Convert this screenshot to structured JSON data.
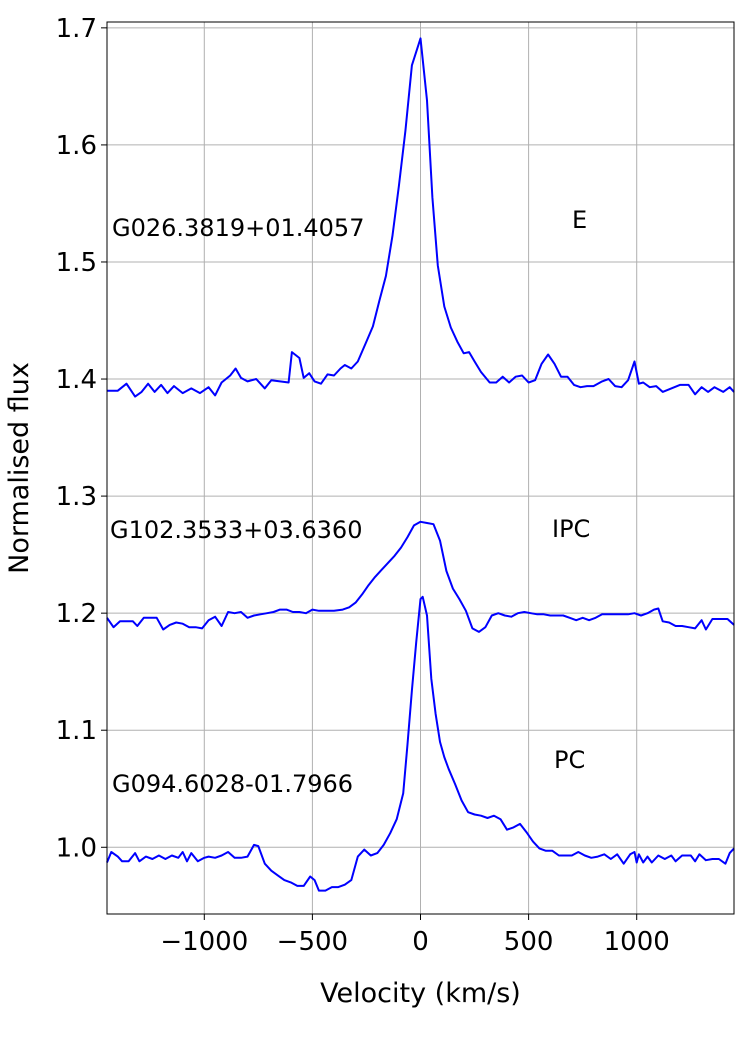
{
  "chart_data": {
    "type": "line",
    "xlabel": "Velocity (km/s)",
    "ylabel": "Normalised flux",
    "xlim": [
      -1450,
      1450
    ],
    "ylim": [
      0.943,
      1.705
    ],
    "xticks": [
      -1000,
      -500,
      0,
      500,
      1000
    ],
    "xtick_labels": [
      "−1000",
      "−500",
      "0",
      "500",
      "1000"
    ],
    "yticks": [
      1.0,
      1.1,
      1.2,
      1.3,
      1.4,
      1.5,
      1.6,
      1.7
    ],
    "ytick_labels": [
      "1.0",
      "1.1",
      "1.2",
      "1.3",
      "1.4",
      "1.5",
      "1.6",
      "1.7"
    ],
    "grid": true,
    "line_color": "#0000ff",
    "series": [
      {
        "name": "G026.3819+01.4057",
        "class_label": "E",
        "points": [
          [
            -1450,
            1.39
          ],
          [
            -1400,
            1.39
          ],
          [
            -1360,
            1.396
          ],
          [
            -1320,
            1.385
          ],
          [
            -1290,
            1.389
          ],
          [
            -1260,
            1.396
          ],
          [
            -1230,
            1.389
          ],
          [
            -1200,
            1.395
          ],
          [
            -1170,
            1.388
          ],
          [
            -1140,
            1.394
          ],
          [
            -1100,
            1.388
          ],
          [
            -1060,
            1.392
          ],
          [
            -1020,
            1.388
          ],
          [
            -980,
            1.393
          ],
          [
            -950,
            1.386
          ],
          [
            -920,
            1.397
          ],
          [
            -880,
            1.403
          ],
          [
            -855,
            1.409
          ],
          [
            -830,
            1.401
          ],
          [
            -800,
            1.398
          ],
          [
            -760,
            1.4
          ],
          [
            -720,
            1.392
          ],
          [
            -690,
            1.399
          ],
          [
            -650,
            1.398
          ],
          [
            -610,
            1.397
          ],
          [
            -595,
            1.423
          ],
          [
            -560,
            1.418
          ],
          [
            -540,
            1.401
          ],
          [
            -515,
            1.405
          ],
          [
            -490,
            1.398
          ],
          [
            -460,
            1.396
          ],
          [
            -430,
            1.404
          ],
          [
            -400,
            1.403
          ],
          [
            -370,
            1.409
          ],
          [
            -350,
            1.412
          ],
          [
            -320,
            1.409
          ],
          [
            -290,
            1.415
          ],
          [
            -250,
            1.432
          ],
          [
            -220,
            1.445
          ],
          [
            -190,
            1.467
          ],
          [
            -160,
            1.488
          ],
          [
            -130,
            1.522
          ],
          [
            -100,
            1.565
          ],
          [
            -70,
            1.612
          ],
          [
            -40,
            1.668
          ],
          [
            0,
            1.691
          ],
          [
            30,
            1.638
          ],
          [
            55,
            1.555
          ],
          [
            80,
            1.497
          ],
          [
            110,
            1.462
          ],
          [
            140,
            1.444
          ],
          [
            170,
            1.432
          ],
          [
            200,
            1.422
          ],
          [
            225,
            1.423
          ],
          [
            250,
            1.415
          ],
          [
            280,
            1.406
          ],
          [
            320,
            1.397
          ],
          [
            350,
            1.397
          ],
          [
            380,
            1.402
          ],
          [
            410,
            1.397
          ],
          [
            440,
            1.402
          ],
          [
            470,
            1.403
          ],
          [
            500,
            1.397
          ],
          [
            530,
            1.399
          ],
          [
            560,
            1.413
          ],
          [
            590,
            1.421
          ],
          [
            620,
            1.413
          ],
          [
            650,
            1.402
          ],
          [
            680,
            1.402
          ],
          [
            710,
            1.395
          ],
          [
            740,
            1.393
          ],
          [
            770,
            1.394
          ],
          [
            800,
            1.394
          ],
          [
            840,
            1.398
          ],
          [
            870,
            1.4
          ],
          [
            900,
            1.394
          ],
          [
            930,
            1.393
          ],
          [
            960,
            1.399
          ],
          [
            990,
            1.415
          ],
          [
            1010,
            1.396
          ],
          [
            1030,
            1.397
          ],
          [
            1060,
            1.393
          ],
          [
            1090,
            1.394
          ],
          [
            1120,
            1.389
          ],
          [
            1160,
            1.392
          ],
          [
            1200,
            1.395
          ],
          [
            1240,
            1.395
          ],
          [
            1270,
            1.387
          ],
          [
            1300,
            1.393
          ],
          [
            1330,
            1.389
          ],
          [
            1360,
            1.393
          ],
          [
            1400,
            1.389
          ],
          [
            1430,
            1.393
          ],
          [
            1450,
            1.389
          ]
        ]
      },
      {
        "name": "G102.3533+03.6360",
        "class_label": "IPC",
        "points": [
          [
            -1450,
            1.196
          ],
          [
            -1420,
            1.188
          ],
          [
            -1390,
            1.193
          ],
          [
            -1360,
            1.193
          ],
          [
            -1330,
            1.193
          ],
          [
            -1310,
            1.189
          ],
          [
            -1280,
            1.196
          ],
          [
            -1250,
            1.196
          ],
          [
            -1220,
            1.196
          ],
          [
            -1190,
            1.186
          ],
          [
            -1160,
            1.19
          ],
          [
            -1130,
            1.192
          ],
          [
            -1100,
            1.191
          ],
          [
            -1070,
            1.188
          ],
          [
            -1040,
            1.188
          ],
          [
            -1010,
            1.187
          ],
          [
            -980,
            1.194
          ],
          [
            -950,
            1.197
          ],
          [
            -920,
            1.189
          ],
          [
            -890,
            1.201
          ],
          [
            -860,
            1.2
          ],
          [
            -830,
            1.201
          ],
          [
            -800,
            1.196
          ],
          [
            -770,
            1.198
          ],
          [
            -740,
            1.199
          ],
          [
            -710,
            1.2
          ],
          [
            -680,
            1.201
          ],
          [
            -650,
            1.203
          ],
          [
            -620,
            1.203
          ],
          [
            -590,
            1.201
          ],
          [
            -560,
            1.201
          ],
          [
            -530,
            1.2
          ],
          [
            -500,
            1.203
          ],
          [
            -470,
            1.202
          ],
          [
            -440,
            1.202
          ],
          [
            -400,
            1.202
          ],
          [
            -360,
            1.203
          ],
          [
            -330,
            1.205
          ],
          [
            -300,
            1.209
          ],
          [
            -270,
            1.216
          ],
          [
            -240,
            1.224
          ],
          [
            -210,
            1.231
          ],
          [
            -180,
            1.237
          ],
          [
            -150,
            1.243
          ],
          [
            -120,
            1.249
          ],
          [
            -90,
            1.256
          ],
          [
            -60,
            1.265
          ],
          [
            -30,
            1.275
          ],
          [
            0,
            1.278
          ],
          [
            30,
            1.277
          ],
          [
            60,
            1.276
          ],
          [
            90,
            1.262
          ],
          [
            120,
            1.236
          ],
          [
            150,
            1.221
          ],
          [
            180,
            1.212
          ],
          [
            210,
            1.202
          ],
          [
            240,
            1.187
          ],
          [
            270,
            1.184
          ],
          [
            300,
            1.188
          ],
          [
            330,
            1.198
          ],
          [
            360,
            1.2
          ],
          [
            390,
            1.198
          ],
          [
            420,
            1.197
          ],
          [
            450,
            1.2
          ],
          [
            480,
            1.201
          ],
          [
            510,
            1.2
          ],
          [
            540,
            1.199
          ],
          [
            570,
            1.199
          ],
          [
            600,
            1.198
          ],
          [
            630,
            1.198
          ],
          [
            660,
            1.198
          ],
          [
            690,
            1.196
          ],
          [
            720,
            1.194
          ],
          [
            750,
            1.196
          ],
          [
            780,
            1.194
          ],
          [
            810,
            1.196
          ],
          [
            840,
            1.199
          ],
          [
            870,
            1.199
          ],
          [
            900,
            1.199
          ],
          [
            930,
            1.199
          ],
          [
            960,
            1.199
          ],
          [
            990,
            1.2
          ],
          [
            1020,
            1.198
          ],
          [
            1050,
            1.2
          ],
          [
            1080,
            1.203
          ],
          [
            1100,
            1.204
          ],
          [
            1120,
            1.193
          ],
          [
            1150,
            1.192
          ],
          [
            1180,
            1.189
          ],
          [
            1210,
            1.189
          ],
          [
            1240,
            1.188
          ],
          [
            1270,
            1.187
          ],
          [
            1300,
            1.194
          ],
          [
            1320,
            1.186
          ],
          [
            1350,
            1.195
          ],
          [
            1380,
            1.195
          ],
          [
            1400,
            1.195
          ],
          [
            1420,
            1.195
          ],
          [
            1450,
            1.19
          ]
        ]
      },
      {
        "name": "G094.6028-01.7966",
        "class_label": "PC",
        "points": [
          [
            -1450,
            0.987
          ],
          [
            -1430,
            0.996
          ],
          [
            -1400,
            0.992
          ],
          [
            -1380,
            0.988
          ],
          [
            -1350,
            0.988
          ],
          [
            -1320,
            0.995
          ],
          [
            -1300,
            0.988
          ],
          [
            -1270,
            0.992
          ],
          [
            -1240,
            0.99
          ],
          [
            -1210,
            0.993
          ],
          [
            -1180,
            0.99
          ],
          [
            -1150,
            0.993
          ],
          [
            -1120,
            0.991
          ],
          [
            -1100,
            0.996
          ],
          [
            -1080,
            0.988
          ],
          [
            -1060,
            0.995
          ],
          [
            -1030,
            0.988
          ],
          [
            -1000,
            0.991
          ],
          [
            -980,
            0.992
          ],
          [
            -950,
            0.991
          ],
          [
            -920,
            0.993
          ],
          [
            -890,
            0.996
          ],
          [
            -860,
            0.991
          ],
          [
            -830,
            0.991
          ],
          [
            -800,
            0.992
          ],
          [
            -770,
            1.002
          ],
          [
            -750,
            1.001
          ],
          [
            -720,
            0.986
          ],
          [
            -690,
            0.98
          ],
          [
            -660,
            0.976
          ],
          [
            -630,
            0.972
          ],
          [
            -600,
            0.97
          ],
          [
            -570,
            0.967
          ],
          [
            -540,
            0.967
          ],
          [
            -510,
            0.975
          ],
          [
            -490,
            0.972
          ],
          [
            -470,
            0.963
          ],
          [
            -440,
            0.963
          ],
          [
            -410,
            0.966
          ],
          [
            -380,
            0.966
          ],
          [
            -350,
            0.968
          ],
          [
            -320,
            0.972
          ],
          [
            -290,
            0.992
          ],
          [
            -260,
            0.998
          ],
          [
            -230,
            0.993
          ],
          [
            -200,
            0.995
          ],
          [
            -170,
            1.002
          ],
          [
            -140,
            1.012
          ],
          [
            -110,
            1.024
          ],
          [
            -80,
            1.046
          ],
          [
            -60,
            1.088
          ],
          [
            -40,
            1.134
          ],
          [
            -20,
            1.175
          ],
          [
            0,
            1.212
          ],
          [
            10,
            1.214
          ],
          [
            30,
            1.198
          ],
          [
            50,
            1.144
          ],
          [
            70,
            1.114
          ],
          [
            90,
            1.09
          ],
          [
            110,
            1.077
          ],
          [
            130,
            1.067
          ],
          [
            160,
            1.054
          ],
          [
            190,
            1.04
          ],
          [
            220,
            1.03
          ],
          [
            250,
            1.028
          ],
          [
            280,
            1.027
          ],
          [
            310,
            1.025
          ],
          [
            340,
            1.027
          ],
          [
            370,
            1.024
          ],
          [
            400,
            1.015
          ],
          [
            430,
            1.017
          ],
          [
            460,
            1.02
          ],
          [
            490,
            1.013
          ],
          [
            520,
            1.005
          ],
          [
            550,
            0.999
          ],
          [
            580,
            0.997
          ],
          [
            610,
            0.997
          ],
          [
            640,
            0.993
          ],
          [
            670,
            0.993
          ],
          [
            700,
            0.993
          ],
          [
            730,
            0.996
          ],
          [
            760,
            0.993
          ],
          [
            790,
            0.991
          ],
          [
            820,
            0.992
          ],
          [
            850,
            0.994
          ],
          [
            880,
            0.99
          ],
          [
            910,
            0.994
          ],
          [
            940,
            0.986
          ],
          [
            970,
            0.994
          ],
          [
            990,
            0.996
          ],
          [
            1000,
            0.987
          ],
          [
            1010,
            0.994
          ],
          [
            1030,
            0.987
          ],
          [
            1050,
            0.992
          ],
          [
            1070,
            0.987
          ],
          [
            1100,
            0.993
          ],
          [
            1130,
            0.99
          ],
          [
            1160,
            0.993
          ],
          [
            1180,
            0.988
          ],
          [
            1210,
            0.993
          ],
          [
            1230,
            0.993
          ],
          [
            1250,
            0.993
          ],
          [
            1270,
            0.988
          ],
          [
            1290,
            0.994
          ],
          [
            1320,
            0.989
          ],
          [
            1350,
            0.99
          ],
          [
            1380,
            0.99
          ],
          [
            1410,
            0.986
          ],
          [
            1430,
            0.995
          ],
          [
            1450,
            0.999
          ]
        ]
      }
    ]
  }
}
